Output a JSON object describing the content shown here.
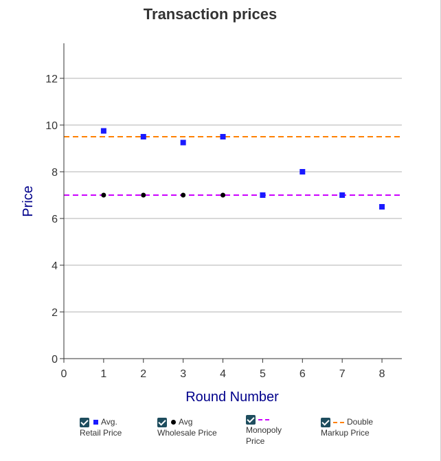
{
  "chart_data": {
    "type": "scatter",
    "title": "Transaction prices",
    "xlabel": "Round Number",
    "ylabel": "Price",
    "xlim": [
      0,
      8.5
    ],
    "ylim": [
      0,
      13.5
    ],
    "x_ticks": [
      "0",
      "1",
      "2",
      "3",
      "4",
      "5",
      "6",
      "7",
      "8"
    ],
    "y_ticks": [
      "0",
      "2",
      "4",
      "6",
      "8",
      "10",
      "12"
    ],
    "grid": "horizontal",
    "series": [
      {
        "key": "retail",
        "label_top": "Avg.",
        "label_bottom": "Retail Price",
        "marker": "square",
        "color": "#1a1aff",
        "points": [
          [
            1,
            9.75
          ],
          [
            2,
            9.5
          ],
          [
            3,
            9.25
          ],
          [
            4,
            9.5
          ],
          [
            5,
            7
          ],
          [
            6,
            8
          ],
          [
            7,
            7
          ],
          [
            8,
            6.5
          ]
        ]
      },
      {
        "key": "wholesale",
        "label_top": "Avg",
        "label_bottom": "Wholesale Price",
        "marker": "circle",
        "color": "#000000",
        "points": [
          [
            1,
            7
          ],
          [
            2,
            7
          ],
          [
            3,
            7
          ],
          [
            4,
            7
          ]
        ]
      }
    ],
    "reference_lines": [
      {
        "key": "monopoly",
        "label_top": "",
        "label_mid": "Monopoly",
        "label_bottom": "Price",
        "value": 7,
        "color": "#cc00ff",
        "style": "dashed"
      },
      {
        "key": "double",
        "label_top": "Double",
        "label_bottom": "Markup Price",
        "value": 9.5,
        "color": "#ff8000",
        "style": "dashed"
      }
    ],
    "legend": {
      "placement": "bottom",
      "checked": true
    }
  }
}
